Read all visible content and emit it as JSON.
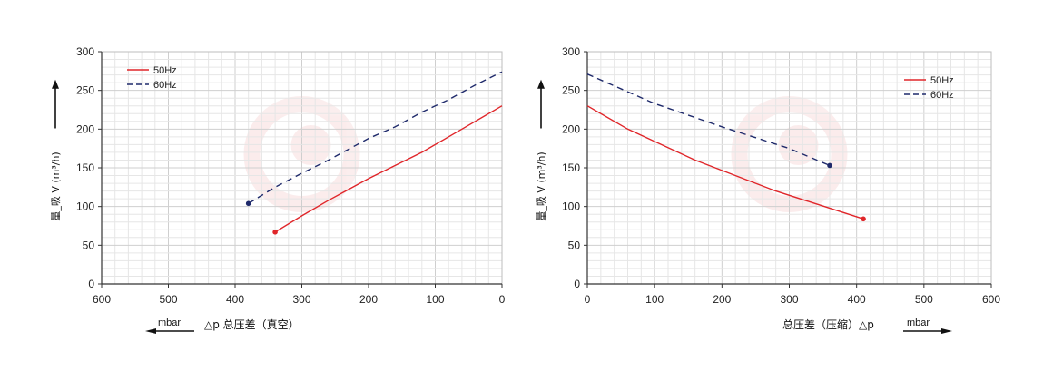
{
  "chart_data": [
    {
      "type": "line",
      "x_reversed": true,
      "xlim": [
        0,
        600
      ],
      "ylim": [
        0,
        300
      ],
      "xticks": [
        "600",
        "500",
        "400",
        "300",
        "200",
        "100",
        "0"
      ],
      "xtick_values": [
        600,
        500,
        400,
        300,
        200,
        100,
        0
      ],
      "yticks": [
        "300",
        "250",
        "200",
        "150",
        "100",
        "50",
        "0"
      ],
      "ytick_values": [
        300,
        250,
        200,
        150,
        100,
        50,
        0
      ],
      "ylabel": "量_吸 V (m³/h)",
      "xlabel": "△p  总压差（真空）",
      "unit": "mbar",
      "grid": true,
      "legend_position": "top-left",
      "series": [
        {
          "name": "50Hz",
          "color": "#e0262a",
          "dash": "solid",
          "x": [
            340,
            300,
            260,
            200,
            120,
            60,
            0
          ],
          "y": [
            67,
            88,
            108,
            136,
            170,
            200,
            230
          ]
        },
        {
          "name": "60Hz",
          "color": "#1f2a6b",
          "dash": "dashed",
          "x": [
            380,
            340,
            300,
            260,
            200,
            160,
            120,
            80,
            40,
            0
          ],
          "y": [
            104,
            125,
            143,
            160,
            188,
            203,
            222,
            238,
            257,
            274
          ]
        }
      ]
    },
    {
      "type": "line",
      "x_reversed": false,
      "xlim": [
        0,
        600
      ],
      "ylim": [
        0,
        300
      ],
      "xticks": [
        "0",
        "100",
        "200",
        "300",
        "400",
        "500",
        "600"
      ],
      "xtick_values": [
        0,
        100,
        200,
        300,
        400,
        500,
        600
      ],
      "yticks": [
        "300",
        "250",
        "200",
        "150",
        "100",
        "50",
        "0"
      ],
      "ytick_values": [
        300,
        250,
        200,
        150,
        100,
        50,
        0
      ],
      "ylabel": "量_吸 V (m³/h)",
      "xlabel": "总压差（压缩）△p",
      "unit": "mbar",
      "grid": true,
      "legend_position": "top-right",
      "series": [
        {
          "name": "50Hz",
          "color": "#e0262a",
          "dash": "solid",
          "x": [
            0,
            60,
            160,
            280,
            410
          ],
          "y": [
            230,
            200,
            160,
            120,
            84
          ]
        },
        {
          "name": "60Hz",
          "color": "#1f2a6b",
          "dash": "dashed",
          "x": [
            0,
            100,
            200,
            300,
            360
          ],
          "y": [
            271,
            233,
            203,
            175,
            153
          ]
        }
      ]
    }
  ]
}
